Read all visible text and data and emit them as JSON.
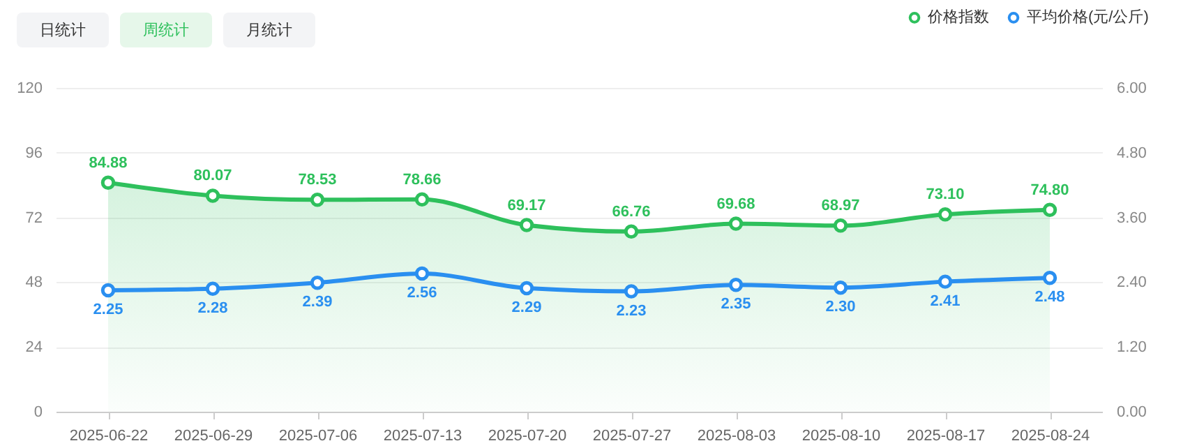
{
  "chart_data": {
    "type": "line",
    "categories": [
      "2025-06-22",
      "2025-06-29",
      "2025-07-06",
      "2025-07-13",
      "2025-07-20",
      "2025-07-27",
      "2025-08-03",
      "2025-08-10",
      "2025-08-17",
      "2025-08-24"
    ],
    "series": [
      {
        "name": "价格指数",
        "type": "area",
        "color": "#2ec05c",
        "values": [
          84.88,
          80.07,
          78.53,
          78.66,
          69.17,
          66.76,
          69.68,
          68.97,
          73.1,
          74.8
        ],
        "value_labels": [
          "84.88",
          "80.07",
          "78.53",
          "78.66",
          "69.17",
          "66.76",
          "69.68",
          "68.97",
          "73.10",
          "74.80"
        ]
      },
      {
        "name": "平均价格(元/公斤)",
        "axis": "y2",
        "color": "#2a8ff0",
        "values": [
          2.25,
          2.28,
          2.39,
          2.56,
          2.29,
          2.23,
          2.35,
          2.3,
          2.41,
          2.48
        ],
        "value_labels": [
          "2.25",
          "2.28",
          "2.39",
          "2.56",
          "2.29",
          "2.23",
          "2.35",
          "2.30",
          "2.41",
          "2.48"
        ]
      }
    ],
    "ylim": [
      0,
      120
    ],
    "yticks": [
      0,
      24,
      48,
      72,
      96,
      120
    ],
    "y2lim": [
      0,
      6
    ],
    "y2ticks": [
      {
        "value": 0,
        "label": "0.00"
      },
      {
        "value": 1.2,
        "label": "1.20"
      },
      {
        "value": 2.4,
        "label": "2.40"
      },
      {
        "value": 3.6,
        "label": "3.60"
      },
      {
        "value": 4.8,
        "label": "4.80"
      },
      {
        "value": 6,
        "label": "6.00"
      }
    ],
    "grid": "y",
    "legend": "top right",
    "marker": "circle",
    "line_style": "solid",
    "annotations": [
      "日统计",
      "周统计",
      "月统计"
    ]
  }
}
